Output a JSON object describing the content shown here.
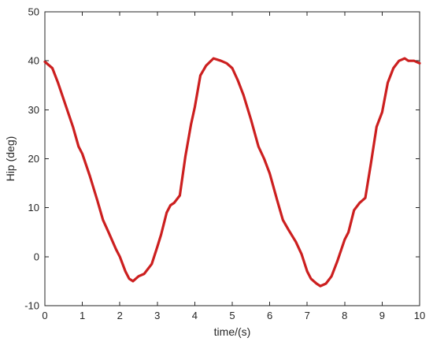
{
  "chart_data": {
    "type": "line",
    "title": "",
    "xlabel": "time/(s)",
    "ylabel": "Hip (deg)",
    "xlim": [
      0,
      10
    ],
    "ylim": [
      -10,
      50
    ],
    "xticks": [
      0,
      1,
      2,
      3,
      4,
      5,
      6,
      7,
      8,
      9,
      10
    ],
    "yticks": [
      -10,
      0,
      10,
      20,
      30,
      40,
      50
    ],
    "xtick_labels": [
      "0",
      "1",
      "2",
      "3",
      "4",
      "5",
      "6",
      "7",
      "8",
      "9",
      "10"
    ],
    "ytick_labels": [
      "-10",
      "0",
      "10",
      "20",
      "30",
      "40",
      "50"
    ],
    "grid": false,
    "legend": "none",
    "colors": {
      "line": "#cc1f1f",
      "axis": "#262626",
      "background": "#ffffff"
    },
    "series": [
      {
        "x": [
          0.0,
          0.2,
          0.35,
          0.55,
          0.75,
          0.9,
          1.0,
          1.2,
          1.4,
          1.55,
          1.7,
          1.9,
          2.0,
          2.15,
          2.25,
          2.35,
          2.5,
          2.65,
          2.85,
          3.0,
          3.1,
          3.25,
          3.35,
          3.45,
          3.6,
          3.75,
          3.9,
          4.0,
          4.15,
          4.3,
          4.5,
          4.7,
          4.85,
          5.0,
          5.15,
          5.3,
          5.5,
          5.7,
          5.85,
          6.0,
          6.2,
          6.35,
          6.5,
          6.7,
          6.85,
          7.0,
          7.1,
          7.25,
          7.35,
          7.5,
          7.65,
          7.8,
          8.0,
          8.1,
          8.25,
          8.4,
          8.55,
          8.7,
          8.85,
          9.0,
          9.15,
          9.3,
          9.45,
          9.6,
          9.7,
          9.85,
          10.0
        ],
        "y": [
          39.8,
          38.5,
          35.5,
          31.0,
          26.5,
          22.5,
          21.0,
          16.5,
          11.5,
          7.5,
          5.0,
          1.5,
          0.0,
          -3.0,
          -4.5,
          -5.0,
          -4.0,
          -3.5,
          -1.5,
          2.0,
          4.5,
          9.0,
          10.5,
          11.0,
          12.5,
          20.5,
          27.0,
          30.5,
          37.0,
          39.0,
          40.5,
          40.0,
          39.5,
          38.5,
          36.0,
          33.0,
          28.0,
          22.5,
          20.0,
          17.0,
          11.5,
          7.5,
          5.5,
          3.0,
          0.5,
          -3.0,
          -4.5,
          -5.5,
          -6.0,
          -5.5,
          -4.0,
          -1.0,
          3.5,
          5.0,
          9.5,
          11.0,
          12.0,
          19.0,
          26.5,
          29.5,
          35.5,
          38.5,
          40.0,
          40.5,
          40.0,
          40.0,
          39.5
        ]
      }
    ]
  }
}
